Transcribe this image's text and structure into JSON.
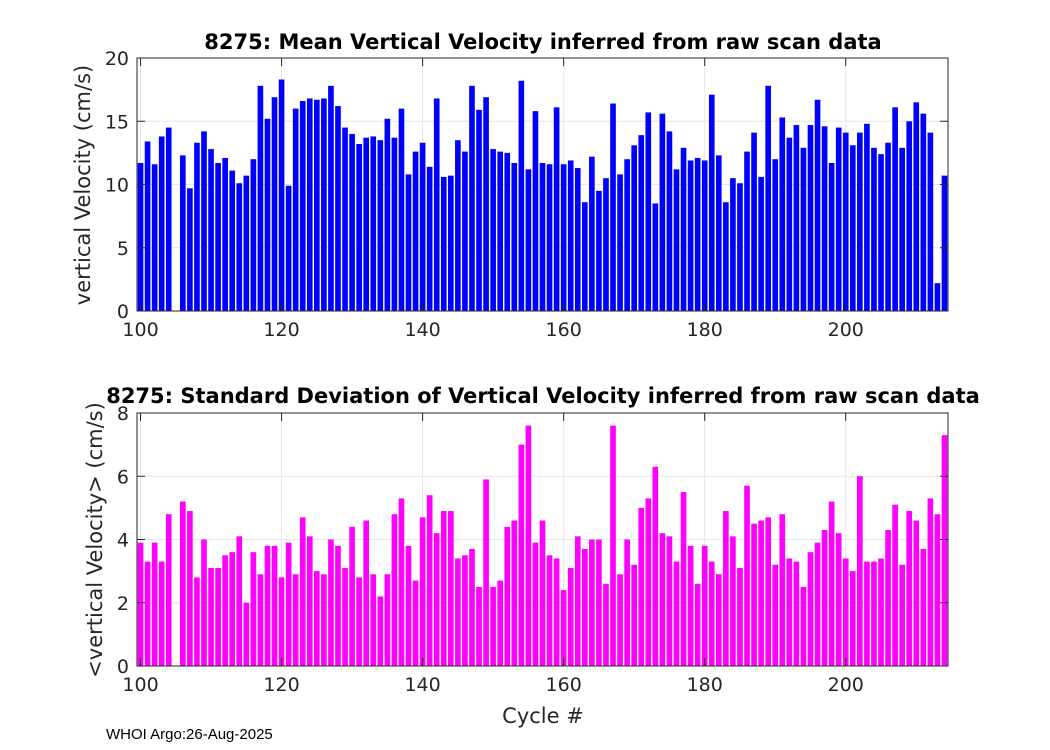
{
  "chart_data": [
    {
      "type": "bar",
      "title": "8275: Mean Vertical Velocity inferred from raw scan data",
      "xlabel": "",
      "ylabel": "vertical Velocity (cm/s)",
      "xlim": [
        99.5,
        214.5
      ],
      "ylim": [
        0,
        20
      ],
      "xticks": [
        100,
        120,
        140,
        160,
        180,
        200
      ],
      "yticks": [
        0,
        5,
        10,
        15,
        20
      ],
      "grid": true,
      "color": "#0000ff",
      "x_start": 100,
      "values": [
        11.7,
        13.4,
        11.6,
        13.8,
        14.5,
        0,
        12.3,
        9.7,
        13.3,
        14.2,
        12.8,
        11.7,
        12.1,
        11.1,
        10.1,
        10.7,
        12.0,
        17.8,
        15.2,
        16.9,
        18.3,
        9.9,
        16.0,
        16.6,
        16.8,
        16.7,
        16.8,
        17.8,
        16.2,
        14.5,
        14.0,
        13.2,
        13.7,
        13.8,
        13.5,
        15.2,
        13.7,
        16.0,
        10.8,
        12.6,
        13.3,
        11.4,
        16.8,
        10.6,
        10.7,
        13.5,
        12.6,
        17.8,
        15.9,
        16.9,
        12.8,
        12.6,
        12.5,
        11.7,
        18.2,
        11.2,
        15.8,
        11.7,
        11.6,
        16.1,
        11.6,
        11.9,
        11.3,
        8.6,
        12.2,
        9.5,
        10.5,
        16.4,
        10.8,
        12.0,
        13.1,
        13.9,
        15.7,
        8.5,
        15.6,
        14.2,
        11.2,
        12.9,
        11.9,
        12.1,
        11.9,
        17.1,
        12.3,
        8.6,
        10.5,
        10.1,
        12.6,
        14.1,
        10.6,
        17.8,
        12.0,
        15.3,
        13.7,
        14.7,
        12.9,
        14.7,
        16.7,
        14.6,
        11.7,
        14.5,
        14.1,
        13.1,
        14.1,
        14.8,
        12.9,
        12.4,
        13.3,
        16.1,
        12.9,
        15.0,
        16.5,
        15.6,
        14.1,
        2.2,
        10.7
      ]
    },
    {
      "type": "bar",
      "title": "8275: Standard Deviation of Vertical Velocity inferred from raw scan data",
      "xlabel": "Cycle #",
      "ylabel": "<vertical Velocity> (cm/s)",
      "xlim": [
        99.5,
        214.5
      ],
      "ylim": [
        0,
        8
      ],
      "xticks": [
        100,
        120,
        140,
        160,
        180,
        200
      ],
      "yticks": [
        0,
        2,
        4,
        6,
        8
      ],
      "grid": true,
      "color": "#ff00ff",
      "x_start": 100,
      "values": [
        3.9,
        3.3,
        3.9,
        3.3,
        4.8,
        0,
        5.2,
        4.9,
        2.8,
        4.0,
        3.1,
        3.1,
        3.5,
        3.6,
        4.1,
        2.0,
        3.6,
        2.9,
        3.8,
        3.8,
        2.8,
        3.9,
        2.9,
        4.7,
        4.1,
        3.0,
        2.9,
        4.0,
        3.8,
        3.1,
        4.4,
        2.8,
        4.6,
        2.9,
        2.2,
        2.9,
        4.8,
        5.3,
        3.8,
        2.7,
        4.7,
        5.4,
        4.2,
        4.9,
        4.9,
        3.4,
        3.5,
        3.7,
        2.5,
        5.9,
        2.5,
        2.7,
        4.4,
        4.6,
        7.0,
        7.6,
        3.9,
        4.6,
        3.5,
        3.4,
        2.4,
        3.1,
        4.1,
        3.7,
        4.0,
        4.0,
        2.6,
        7.6,
        2.9,
        4.0,
        3.2,
        5.0,
        5.3,
        6.3,
        4.2,
        4.1,
        3.3,
        5.5,
        3.8,
        2.6,
        3.8,
        3.3,
        2.9,
        4.9,
        4.1,
        3.1,
        5.7,
        4.5,
        4.6,
        4.7,
        3.2,
        4.8,
        3.4,
        3.3,
        2.5,
        3.6,
        3.9,
        4.3,
        5.2,
        4.2,
        3.4,
        3.0,
        6.0,
        3.3,
        3.3,
        3.4,
        4.3,
        5.1,
        3.2,
        4.9,
        4.6,
        3.7,
        5.3,
        4.8,
        7.3
      ]
    }
  ],
  "footer": "WHOI Argo:26-Aug-2025"
}
